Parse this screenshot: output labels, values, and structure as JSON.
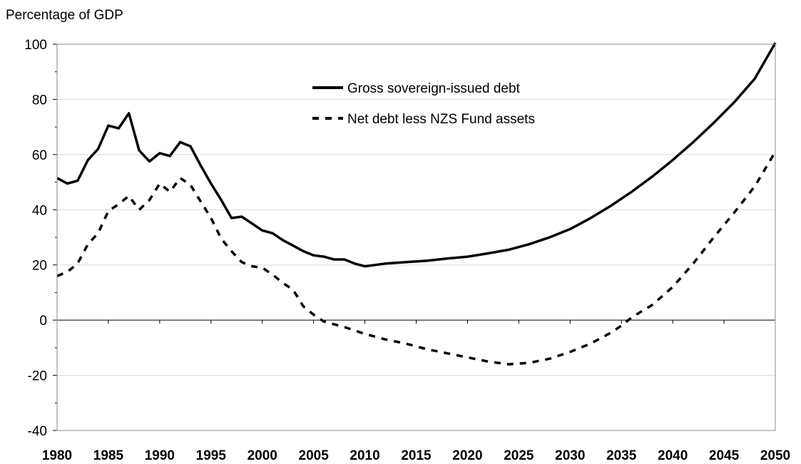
{
  "chart_data": {
    "type": "line",
    "ylabel": "Percentage of GDP",
    "xlim": [
      1980,
      2050
    ],
    "ylim": [
      -40,
      100
    ],
    "y_ticks": [
      100,
      80,
      60,
      40,
      20,
      0,
      -20,
      -40
    ],
    "x_ticks": [
      1980,
      1985,
      1990,
      1995,
      2000,
      2005,
      2010,
      2015,
      2020,
      2025,
      2030,
      2035,
      2040,
      2045,
      2050
    ],
    "grid": true,
    "legend_position": "top-center",
    "series": [
      {
        "name": "Gross sovereign-issued debt",
        "style": "solid",
        "color": "#000000",
        "x": [
          1980,
          1981,
          1982,
          1983,
          1984,
          1985,
          1986,
          1987,
          1988,
          1989,
          1990,
          1991,
          1992,
          1993,
          1994,
          1995,
          1996,
          1997,
          1998,
          1999,
          2000,
          2001,
          2002,
          2003,
          2004,
          2005,
          2006,
          2007,
          2008,
          2009,
          2010,
          2012,
          2014,
          2016,
          2018,
          2020,
          2022,
          2024,
          2026,
          2028,
          2030,
          2032,
          2034,
          2036,
          2038,
          2040,
          2042,
          2044,
          2046,
          2048,
          2050
        ],
        "values": [
          51.5,
          49.5,
          50.5,
          58,
          62,
          70.5,
          69.5,
          75,
          61.5,
          57.5,
          60.5,
          59.5,
          64.5,
          63,
          56,
          49.5,
          43.5,
          37,
          37.5,
          35,
          32.5,
          31.5,
          29,
          27,
          25,
          23.5,
          23,
          22,
          22,
          20.5,
          19.5,
          20.5,
          21,
          21.5,
          22.3,
          23,
          24.2,
          25.5,
          27.5,
          30,
          33,
          37,
          41.5,
          46.5,
          52,
          58,
          64.5,
          71.5,
          79,
          87.5,
          100.5
        ]
      },
      {
        "name": "Net debt less NZS Fund assets",
        "style": "dashed",
        "color": "#000000",
        "x": [
          1980,
          1981,
          1982,
          1983,
          1984,
          1985,
          1986,
          1987,
          1988,
          1989,
          1990,
          1991,
          1992,
          1993,
          1994,
          1995,
          1996,
          1997,
          1998,
          1999,
          2000,
          2001,
          2002,
          2003,
          2004,
          2005,
          2006,
          2008,
          2010,
          2012,
          2014,
          2016,
          2018,
          2020,
          2022,
          2024,
          2026,
          2028,
          2030,
          2032,
          2034,
          2035,
          2036,
          2038,
          2040,
          2042,
          2044,
          2046,
          2048,
          2050
        ],
        "values": [
          16,
          17.5,
          20.5,
          27.5,
          31.5,
          39.5,
          42,
          45,
          40,
          43.5,
          49.5,
          46.5,
          51.5,
          49,
          43,
          37,
          29.5,
          25,
          21,
          19.5,
          19,
          16.5,
          13.5,
          11,
          5,
          2,
          -0.5,
          -2.5,
          -5,
          -7,
          -8.5,
          -10.5,
          -12,
          -13.5,
          -15,
          -16,
          -15.5,
          -14,
          -11.5,
          -8.5,
          -4.5,
          -2,
          1,
          5.5,
          12,
          20.5,
          30,
          39,
          48.5,
          61
        ]
      }
    ]
  }
}
